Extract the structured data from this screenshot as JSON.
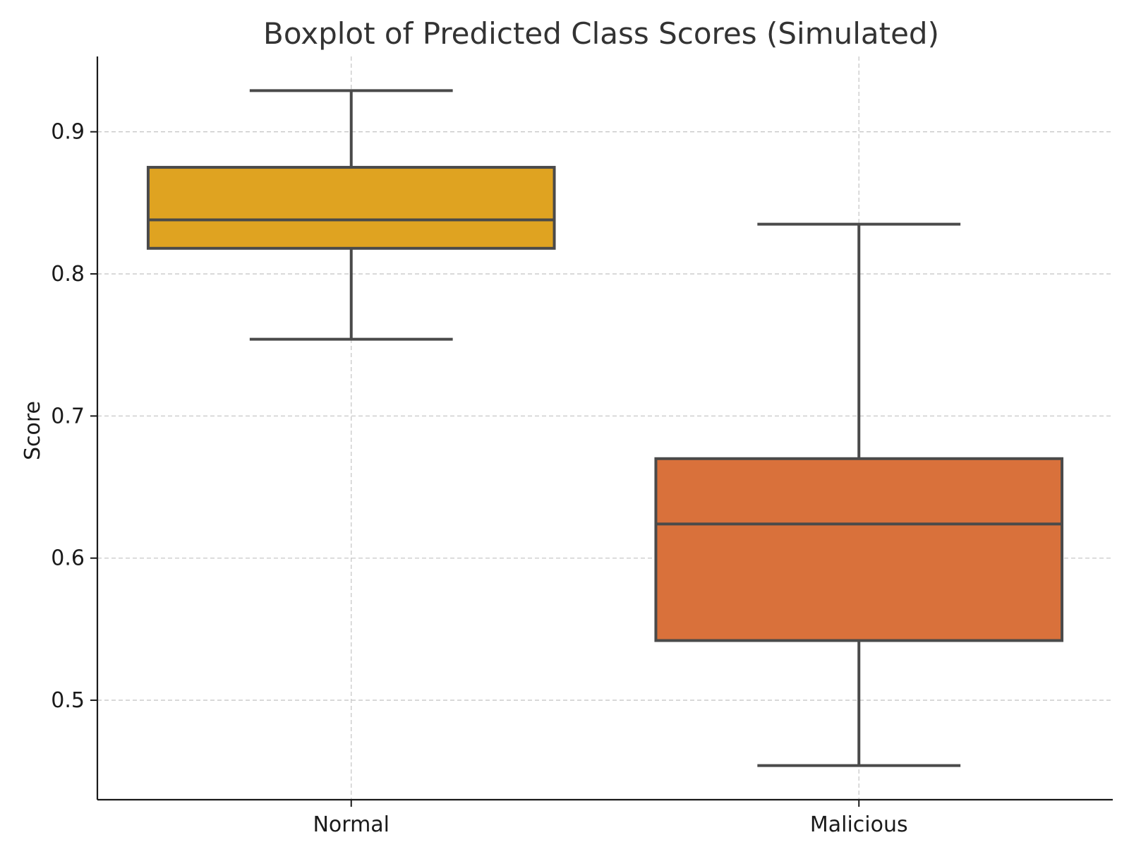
{
  "chart_data": {
    "type": "box",
    "title": "Boxplot of Predicted Class Scores (Simulated)",
    "xlabel": "",
    "ylabel": "Score",
    "categories": [
      "Normal",
      "Malicious"
    ],
    "boxes": [
      {
        "category": "Normal",
        "whisker_low": 0.754,
        "q1": 0.818,
        "median": 0.838,
        "q3": 0.875,
        "whisker_high": 0.929,
        "color": "#DFA321"
      },
      {
        "category": "Malicious",
        "whisker_low": 0.454,
        "q1": 0.542,
        "median": 0.624,
        "q3": 0.67,
        "whisker_high": 0.835,
        "color": "#D9713B"
      }
    ],
    "yticks": [
      "0.5",
      "0.6",
      "0.7",
      "0.8",
      "0.9"
    ],
    "ylim": [
      0.43,
      0.953
    ],
    "grid": true
  }
}
